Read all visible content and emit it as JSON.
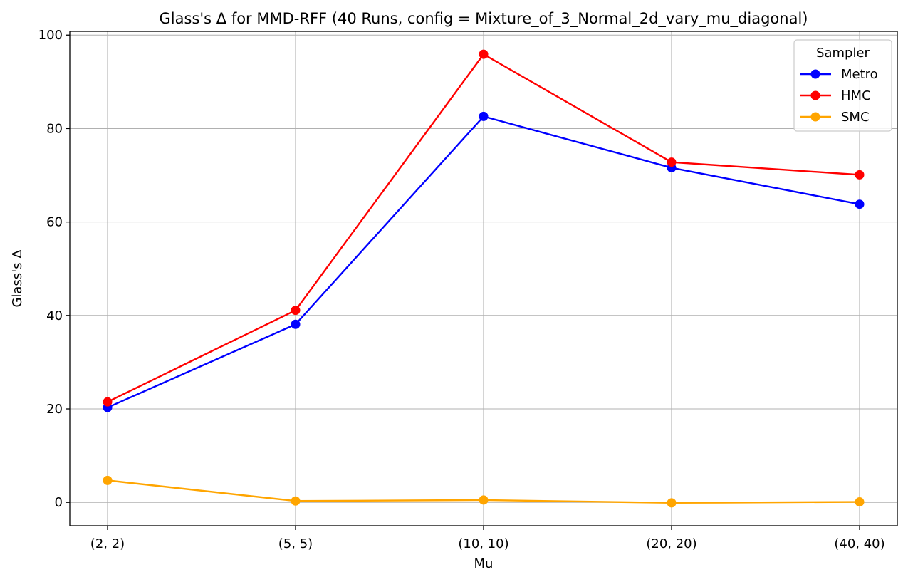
{
  "chart_data": {
    "type": "line",
    "title": "Glass's Δ for MMD-RFF (40 Runs, config = Mixture_of_3_Normal_2d_vary_mu_diagonal)",
    "xlabel": "Mu",
    "ylabel": "Glass's Δ",
    "categories": [
      "(2, 2)",
      "(5, 5)",
      "(10, 10)",
      "(20, 20)",
      "(40, 40)"
    ],
    "ylim": [
      -5,
      100.8
    ],
    "yticks": [
      0,
      20,
      40,
      60,
      80,
      100
    ],
    "grid": true,
    "legend": {
      "title": "Sampler",
      "placement": "top-right"
    },
    "series": [
      {
        "name": "Metro",
        "color": "#0000ff",
        "values": [
          20.3,
          38.1,
          82.6,
          71.6,
          63.8
        ]
      },
      {
        "name": "HMC",
        "color": "#ff0000",
        "values": [
          21.5,
          41.1,
          95.9,
          72.8,
          70.1
        ]
      },
      {
        "name": "SMC",
        "color": "#ffa500",
        "values": [
          4.7,
          0.3,
          0.5,
          -0.1,
          0.1
        ]
      }
    ]
  }
}
